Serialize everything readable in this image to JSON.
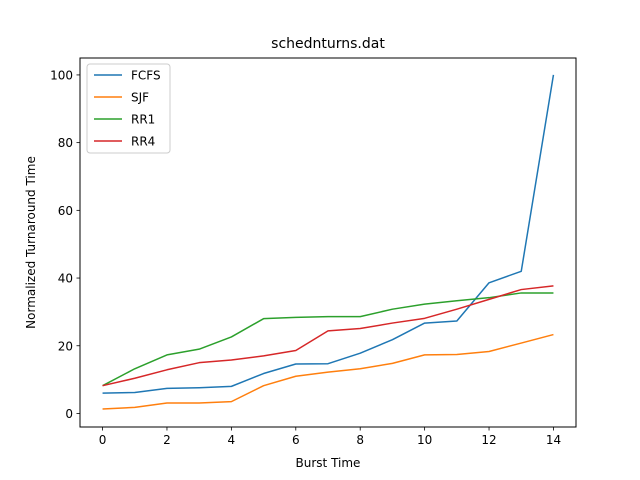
{
  "chart_data": {
    "type": "line",
    "title": "schednturns.dat",
    "xlabel": "Burst Time",
    "ylabel": "Normalized Turnaround Time",
    "xlim": [
      -0.7,
      14.7
    ],
    "ylim": [
      -4,
      105
    ],
    "xticks": [
      0,
      2,
      4,
      6,
      8,
      10,
      12,
      14
    ],
    "yticks": [
      0,
      20,
      40,
      60,
      80,
      100
    ],
    "grid": false,
    "legend_position": "top-left",
    "x": [
      0,
      1,
      2,
      3,
      4,
      5,
      6,
      7,
      8,
      9,
      10,
      11,
      12,
      13,
      14
    ],
    "series": [
      {
        "name": "FCFS",
        "color": "#1f77b4",
        "values": [
          6.0,
          6.2,
          7.4,
          7.6,
          8.0,
          11.8,
          14.6,
          14.7,
          17.8,
          21.8,
          26.7,
          27.3,
          38.6,
          42.0,
          100.0
        ]
      },
      {
        "name": "SJF",
        "color": "#ff7f0e",
        "values": [
          1.3,
          1.8,
          3.1,
          3.1,
          3.5,
          8.2,
          11.0,
          12.2,
          13.2,
          14.8,
          17.3,
          17.4,
          18.3,
          20.8,
          23.3
        ]
      },
      {
        "name": "RR1",
        "color": "#2ca02c",
        "values": [
          8.2,
          13.2,
          17.3,
          19.0,
          22.6,
          28.0,
          28.4,
          28.6,
          28.6,
          30.8,
          32.3,
          33.3,
          34.2,
          35.6,
          35.6
        ]
      },
      {
        "name": "RR4",
        "color": "#d62728",
        "values": [
          8.2,
          10.4,
          12.9,
          15.0,
          15.8,
          17.0,
          18.6,
          24.4,
          25.1,
          26.7,
          28.1,
          30.8,
          33.7,
          36.6,
          37.7
        ]
      }
    ]
  }
}
